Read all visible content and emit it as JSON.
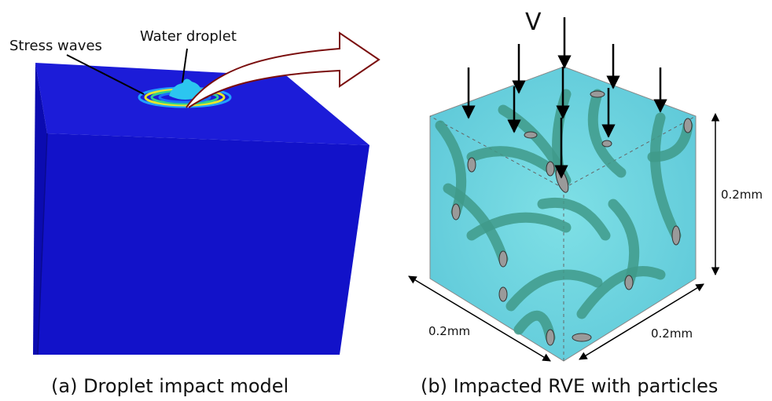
{
  "panel_a": {
    "labels": {
      "stress_waves": "Stress waves",
      "water_droplet": "Water droplet"
    },
    "caption": "(a) Droplet impact model"
  },
  "panel_b": {
    "velocity_label": "V",
    "dimensions": [
      "0.2mm",
      "0.2mm",
      "0.2mm"
    ],
    "caption": "(b) Impacted RVE with particles"
  }
}
